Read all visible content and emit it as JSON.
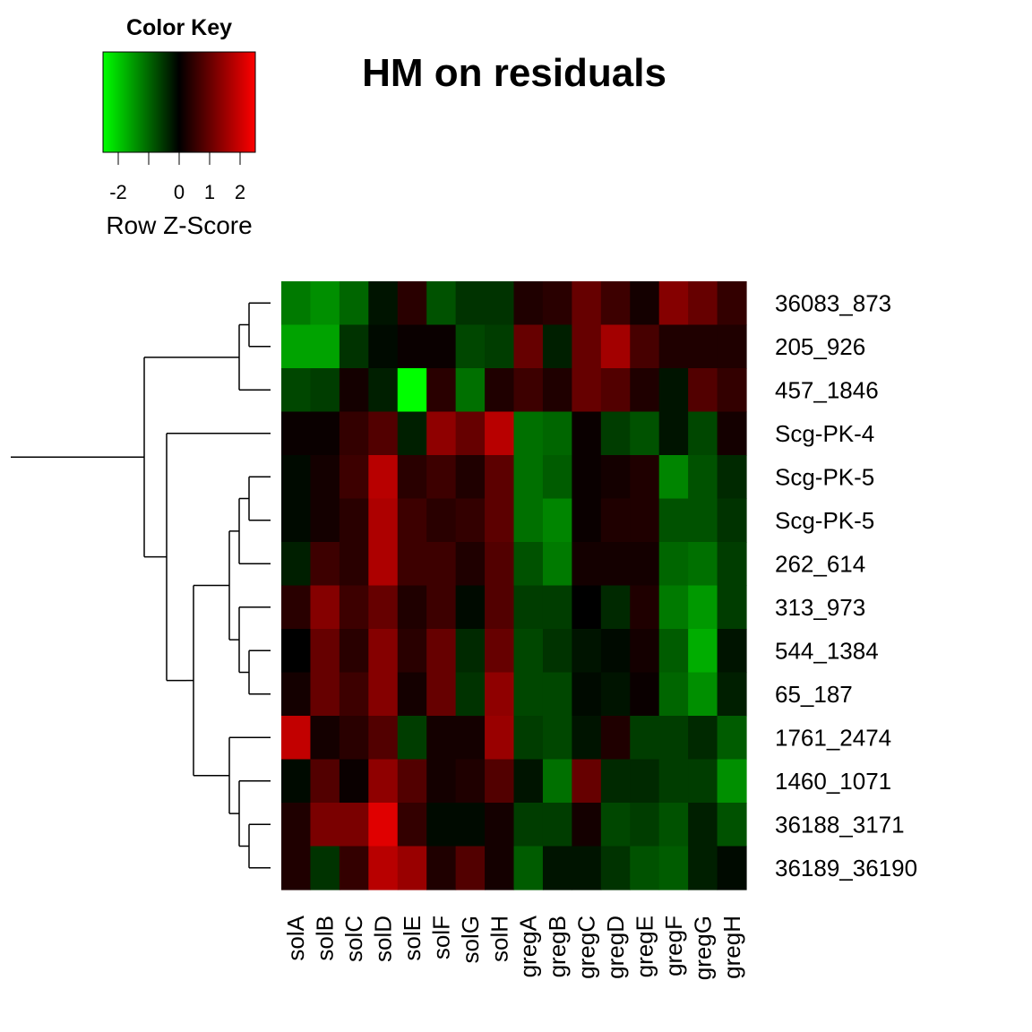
{
  "chart_data": {
    "type": "heatmap",
    "title": "HM on residuals",
    "color_key": {
      "title": "Color Key",
      "xlabel": "Row Z-Score",
      "ticks": [
        "-2",
        "0",
        "1",
        "2"
      ],
      "range": [
        -2.5,
        2.5
      ],
      "colors": {
        "low": "#00ff00",
        "mid": "#000000",
        "high": "#ff0000"
      }
    },
    "columns": [
      "solA",
      "solB",
      "solC",
      "solD",
      "solE",
      "solF",
      "solG",
      "solH",
      "gregA",
      "gregB",
      "gregC",
      "gregD",
      "gregE",
      "gregF",
      "gregG",
      "gregH"
    ],
    "rows": [
      "36083_873",
      "205_926",
      "457_1846",
      "Scg-PK-4",
      "Scg-PK-5",
      "Scg-PK-5",
      "262_614",
      "313_973",
      "544_1384",
      "65_187",
      "1761_2474",
      "1460_1071",
      "36188_3171",
      "36189_36190"
    ],
    "values": [
      [
        -1.2,
        -1.4,
        -1.0,
        -0.2,
        0.4,
        -0.8,
        -0.5,
        -0.5,
        0.3,
        0.4,
        1.0,
        0.6,
        0.2,
        1.3,
        1.0,
        0.5
      ],
      [
        -1.6,
        -1.6,
        -0.5,
        -0.1,
        0.1,
        0.1,
        -0.7,
        -0.6,
        1.0,
        -0.3,
        1.0,
        1.6,
        0.7,
        0.3,
        0.3,
        0.3
      ],
      [
        -0.7,
        -0.6,
        0.2,
        -0.3,
        -2.5,
        0.4,
        -1.1,
        0.3,
        0.6,
        0.3,
        1.0,
        0.8,
        0.3,
        -0.2,
        0.8,
        0.5
      ],
      [
        0.1,
        0.1,
        0.5,
        0.8,
        -0.3,
        1.4,
        1.0,
        1.8,
        -1.1,
        -1.0,
        0.1,
        -0.6,
        -0.8,
        -0.2,
        -0.7,
        0.2
      ],
      [
        -0.1,
        0.2,
        0.6,
        1.8,
        0.4,
        0.6,
        0.3,
        0.9,
        -1.1,
        -0.9,
        0.1,
        0.2,
        0.3,
        -1.3,
        -0.8,
        -0.4
      ],
      [
        -0.1,
        0.2,
        0.4,
        1.7,
        0.6,
        0.4,
        0.5,
        0.9,
        -1.1,
        -1.3,
        0.1,
        0.3,
        0.3,
        -0.8,
        -0.8,
        -0.5
      ],
      [
        -0.3,
        0.6,
        0.4,
        1.7,
        0.6,
        0.6,
        0.3,
        0.8,
        -0.8,
        -1.2,
        0.2,
        0.2,
        0.2,
        -1.0,
        -1.1,
        -0.6
      ],
      [
        0.4,
        1.3,
        0.6,
        1.0,
        0.3,
        0.6,
        -0.1,
        0.8,
        -0.6,
        -0.6,
        0.0,
        -0.4,
        0.3,
        -1.2,
        -1.5,
        -0.6
      ],
      [
        0.0,
        1.0,
        0.4,
        1.3,
        0.4,
        1.0,
        -0.4,
        1.0,
        -0.7,
        -0.5,
        -0.2,
        -0.1,
        0.2,
        -0.9,
        -1.7,
        -0.2
      ],
      [
        0.2,
        1.0,
        0.6,
        1.3,
        0.2,
        1.0,
        -0.5,
        1.4,
        -0.7,
        -0.7,
        -0.1,
        -0.2,
        0.1,
        -1.0,
        -1.4,
        -0.3
      ],
      [
        1.9,
        0.2,
        0.4,
        0.8,
        -0.6,
        0.2,
        0.2,
        1.5,
        -0.6,
        -0.7,
        -0.2,
        0.3,
        -0.6,
        -0.6,
        -0.4,
        -0.9
      ],
      [
        -0.1,
        0.8,
        0.1,
        1.4,
        0.8,
        0.2,
        0.3,
        0.8,
        -0.2,
        -1.1,
        1.0,
        -0.4,
        -0.4,
        -0.6,
        -0.6,
        -1.4
      ],
      [
        0.3,
        1.2,
        1.2,
        2.2,
        0.5,
        -0.1,
        -0.1,
        0.2,
        -0.6,
        -0.6,
        0.2,
        -0.7,
        -0.6,
        -0.8,
        -0.3,
        -0.8
      ],
      [
        0.3,
        -0.5,
        0.5,
        1.8,
        1.5,
        0.3,
        0.8,
        0.2,
        -0.9,
        -0.2,
        -0.2,
        -0.5,
        -0.8,
        -0.9,
        -0.3,
        -0.1
      ]
    ],
    "row_dendrogram": "((((36083_873,205_926),457_1846),(Scg-PK-4,(((((Scg-PK-5,Scg-PK-5),262_614),(313_973,(544_1384,65_187))),(1761_2474,(1460_1071,(36188_3171,36189_36190))))))))"
  }
}
